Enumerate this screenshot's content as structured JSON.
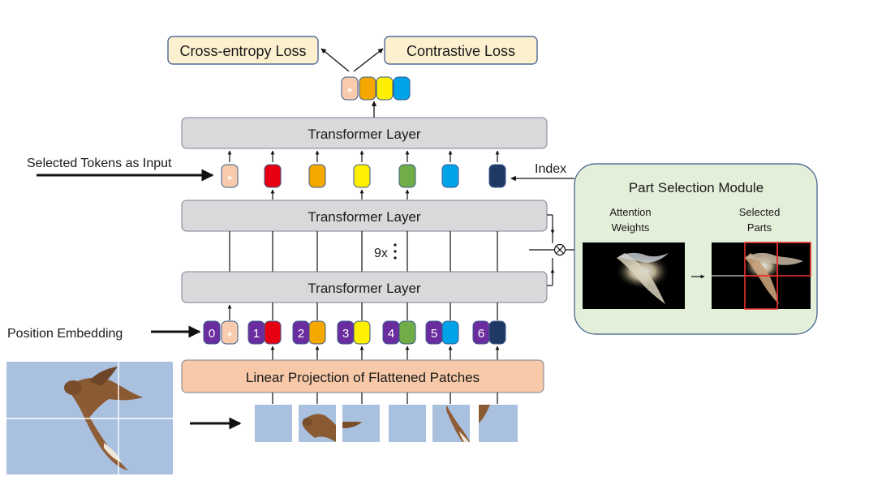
{
  "losses": {
    "cross_entropy": "Cross-entropy Loss",
    "contrastive": "Contrastive Loss"
  },
  "layers": {
    "top": "Transformer Layer",
    "middle": "Transformer Layer",
    "bottom": "Transformer Layer",
    "repeat_label": "9x"
  },
  "inputs": {
    "selected_tokens": "Selected Tokens as Input",
    "position_embedding": "Position Embedding",
    "index": "Index"
  },
  "projection": {
    "label": "Linear Projection of Flattened Patches"
  },
  "psm": {
    "title": "Part Selection Module",
    "attention_line1": "Attention",
    "attention_line2": "Weights",
    "selected_line1": "Selected",
    "selected_line2": "Parts"
  },
  "position_ids": [
    "0",
    "1",
    "2",
    "3",
    "4",
    "5",
    "6"
  ],
  "colors": {
    "loss_fill": "#fdf0cf",
    "loss_stroke": "#2f4f8a",
    "layer_fill": "#d9d9db",
    "projection_fill": "#f7c9a8",
    "psm_fill": "#e3efd9",
    "position_purple": "#6a2c9e",
    "cls_token": "#f8cbad",
    "token_colors": [
      "#f8cbad",
      "#e60012",
      "#f5a800",
      "#ffef00",
      "#70ad47",
      "#00a2e8",
      "#1f3864"
    ],
    "sky": "#a9c0df",
    "bird": "#8a5a32"
  }
}
